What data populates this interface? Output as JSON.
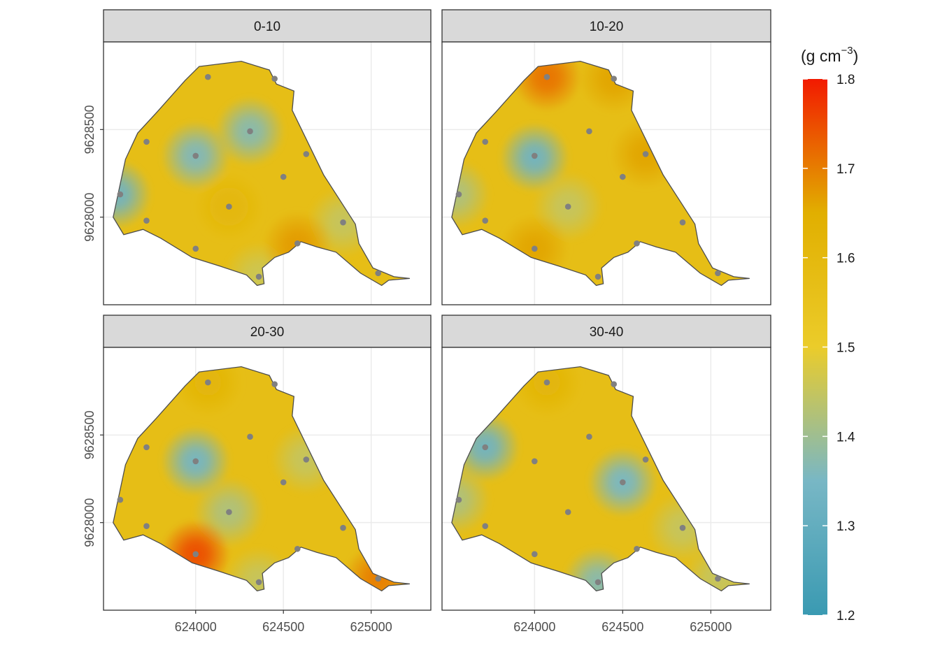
{
  "chart_data": {
    "type": "heatmap",
    "facets": [
      {
        "label": "0-10",
        "hotspots": [
          {
            "x": 623550,
            "y": 9628130,
            "value": 1.33
          },
          {
            "x": 624000,
            "y": 9628350,
            "value": 1.36
          },
          {
            "x": 624310,
            "y": 9628490,
            "value": 1.37
          },
          {
            "x": 624840,
            "y": 9627970,
            "value": 1.45
          },
          {
            "x": 624360,
            "y": 9627660,
            "value": 1.46
          },
          {
            "x": 624580,
            "y": 9627840,
            "value": 1.67
          },
          {
            "x": 624190,
            "y": 9628060,
            "value": 1.61
          }
        ]
      },
      {
        "label": "10-20",
        "hotspots": [
          {
            "x": 624070,
            "y": 9628800,
            "value": 1.71
          },
          {
            "x": 624450,
            "y": 9628790,
            "value": 1.66
          },
          {
            "x": 624000,
            "y": 9628340,
            "value": 1.33
          },
          {
            "x": 623550,
            "y": 9628130,
            "value": 1.42
          },
          {
            "x": 624190,
            "y": 9628060,
            "value": 1.45
          },
          {
            "x": 624630,
            "y": 9628360,
            "value": 1.66
          },
          {
            "x": 624000,
            "y": 9627820,
            "value": 1.66
          }
        ]
      },
      {
        "label": "20-30",
        "hotspots": [
          {
            "x": 624000,
            "y": 9628350,
            "value": 1.34
          },
          {
            "x": 624190,
            "y": 9628060,
            "value": 1.42
          },
          {
            "x": 624630,
            "y": 9628360,
            "value": 1.45
          },
          {
            "x": 624360,
            "y": 9627660,
            "value": 1.45
          },
          {
            "x": 624000,
            "y": 9627820,
            "value": 1.75
          },
          {
            "x": 625040,
            "y": 9627680,
            "value": 1.7
          },
          {
            "x": 624070,
            "y": 9628800,
            "value": 1.62
          }
        ]
      },
      {
        "label": "30-40",
        "hotspots": [
          {
            "x": 623720,
            "y": 9628430,
            "value": 1.33
          },
          {
            "x": 624500,
            "y": 9628230,
            "value": 1.35
          },
          {
            "x": 624360,
            "y": 9627660,
            "value": 1.37
          },
          {
            "x": 623550,
            "y": 9628130,
            "value": 1.42
          },
          {
            "x": 624840,
            "y": 9627970,
            "value": 1.45
          },
          {
            "x": 625040,
            "y": 9627680,
            "value": 1.45
          },
          {
            "x": 624070,
            "y": 9628800,
            "value": 1.62
          }
        ]
      }
    ],
    "background_value": 1.57,
    "points": [
      {
        "x": 624070,
        "y": 9628800
      },
      {
        "x": 624450,
        "y": 9628790
      },
      {
        "x": 624310,
        "y": 9628490
      },
      {
        "x": 623720,
        "y": 9628430
      },
      {
        "x": 624000,
        "y": 9628350
      },
      {
        "x": 624630,
        "y": 9628360
      },
      {
        "x": 624500,
        "y": 9628230
      },
      {
        "x": 623570,
        "y": 9628130
      },
      {
        "x": 624190,
        "y": 9628060
      },
      {
        "x": 623720,
        "y": 9627980
      },
      {
        "x": 624840,
        "y": 9627970
      },
      {
        "x": 624580,
        "y": 9627850
      },
      {
        "x": 624000,
        "y": 9627820
      },
      {
        "x": 624360,
        "y": 9627660
      },
      {
        "x": 625040,
        "y": 9627680
      }
    ],
    "boundary": [
      [
        624020,
        9628860
      ],
      [
        624260,
        9628890
      ],
      [
        624420,
        9628840
      ],
      [
        624460,
        9628760
      ],
      [
        624560,
        9628720
      ],
      [
        624550,
        9628610
      ],
      [
        624730,
        9628240
      ],
      [
        624910,
        9627960
      ],
      [
        624930,
        9627850
      ],
      [
        625010,
        9627710
      ],
      [
        625130,
        9627660
      ],
      [
        625220,
        9627650
      ],
      [
        625100,
        9627640
      ],
      [
        625060,
        9627610
      ],
      [
        624940,
        9627680
      ],
      [
        624800,
        9627800
      ],
      [
        624690,
        9627830
      ],
      [
        624600,
        9627860
      ],
      [
        624530,
        9627800
      ],
      [
        624450,
        9627770
      ],
      [
        624380,
        9627710
      ],
      [
        624390,
        9627620
      ],
      [
        624350,
        9627610
      ],
      [
        624290,
        9627670
      ],
      [
        624140,
        9627720
      ],
      [
        623980,
        9627770
      ],
      [
        623800,
        9627880
      ],
      [
        623700,
        9627930
      ],
      [
        623590,
        9627900
      ],
      [
        623530,
        9628000
      ],
      [
        623600,
        9628330
      ],
      [
        623670,
        9628480
      ],
      [
        623780,
        9628600
      ],
      [
        623940,
        9628780
      ]
    ],
    "xlim": [
      623475,
      625340
    ],
    "ylim": [
      9627500,
      9629000
    ],
    "x_ticks": [
      624000,
      624500,
      625000
    ],
    "y_ticks": [
      9628000,
      9628500
    ],
    "xlabel": "",
    "ylabel": "",
    "legend": {
      "title_main": "(g cm",
      "title_sup": "−3",
      "title_end": ")",
      "range": [
        1.2,
        1.8
      ],
      "ticks": [
        1.2,
        1.3,
        1.4,
        1.5,
        1.6,
        1.7,
        1.8
      ],
      "placement": "right",
      "color_stops": [
        {
          "value": 1.2,
          "color": "#3a9ab2"
        },
        {
          "value": 1.35,
          "color": "#78b7c5"
        },
        {
          "value": 1.5,
          "color": "#ebcc2a"
        },
        {
          "value": 1.65,
          "color": "#e1af00"
        },
        {
          "value": 1.8,
          "color": "#f21a00"
        }
      ]
    },
    "colors": {
      "point": "#808080",
      "boundary": "#4d4d4d",
      "grid": "#ebebeb",
      "strip_fill": "#d9d9d9",
      "panel_border": "#333333"
    }
  }
}
